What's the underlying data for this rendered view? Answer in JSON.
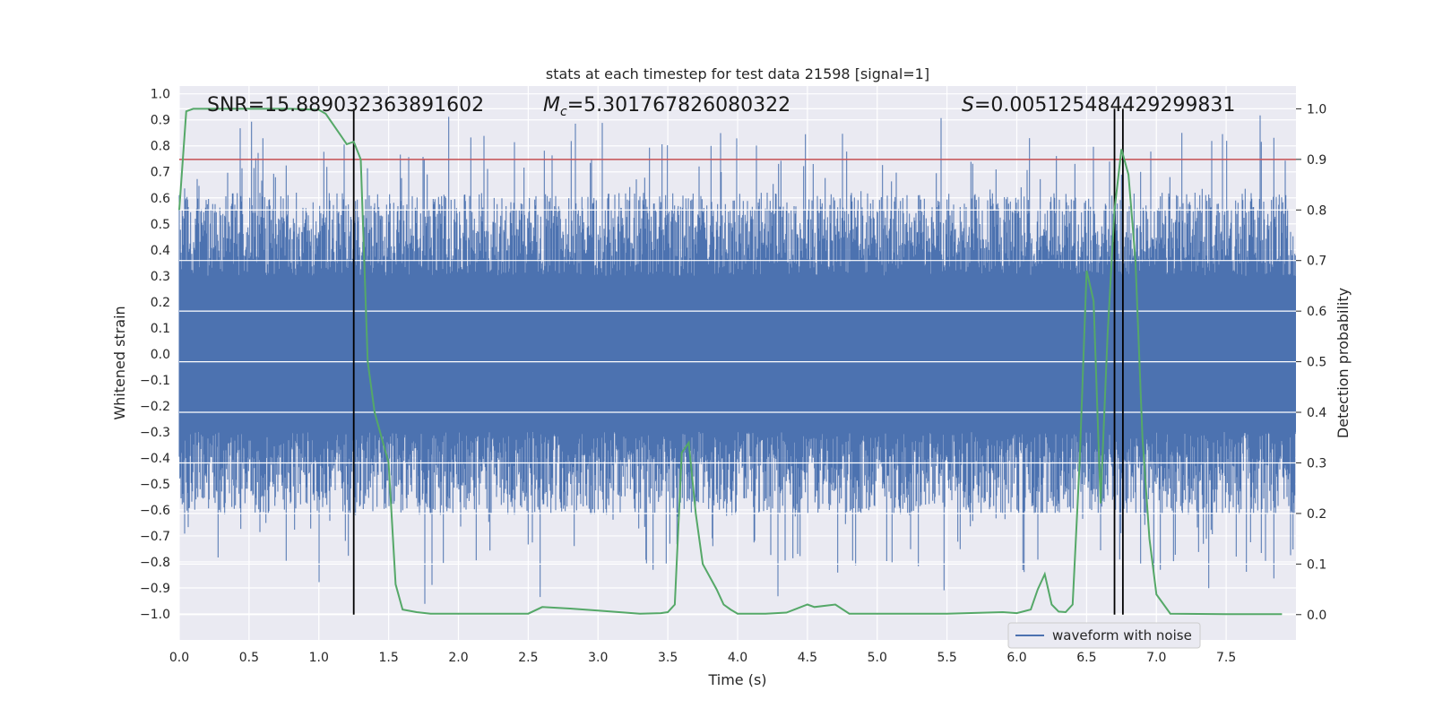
{
  "chart_data": {
    "type": "line",
    "title": "stats at each timestep for test data 21598 [signal=1]",
    "xlabel": "Time (s)",
    "ylabel_left": "Whitened strain",
    "ylabel_right": "Detection probability",
    "xlim": [
      0,
      8
    ],
    "ylim_left": [
      -1.1,
      1.03
    ],
    "ylim_right": [
      -0.05,
      1.045
    ],
    "x_ticks": [
      "0.0",
      "0.5",
      "1.0",
      "1.5",
      "2.0",
      "2.5",
      "3.0",
      "3.5",
      "4.0",
      "4.5",
      "5.0",
      "5.5",
      "6.0",
      "6.5",
      "7.0",
      "7.5"
    ],
    "y_ticks_left": [
      "1.0",
      "0.9",
      "0.8",
      "0.7",
      "0.6",
      "0.5",
      "0.4",
      "0.3",
      "0.2",
      "0.1",
      "0.0",
      "−0.1",
      "−0.2",
      "−0.3",
      "−0.4",
      "−0.5",
      "−0.6",
      "−0.7",
      "−0.8",
      "−0.9",
      "−1.0"
    ],
    "y_ticks_right": [
      "1.0",
      "0.9",
      "0.8",
      "0.7",
      "0.6",
      "0.5",
      "0.4",
      "0.3",
      "0.2",
      "0.1",
      "0.0"
    ],
    "grid": true,
    "legend": {
      "placement": "lower right",
      "entries": [
        "waveform with noise"
      ]
    },
    "annotations": {
      "snr": "SNR=15.889032363891602",
      "mc_symbol": "M",
      "mc_sub": "c",
      "mc_value": "=5.301767826080322",
      "s_symbol": "S",
      "s_value": "=0.005125484429299831"
    },
    "threshold_probability": 0.9,
    "vertical_markers_s": [
      1.25,
      6.7,
      6.76
    ],
    "series": [
      {
        "name": "waveform with noise",
        "kind": "noise",
        "color": "#4c72b0",
        "core_band": [
          -0.3,
          0.3
        ],
        "typical_peak": 0.62,
        "samples": 16384
      },
      {
        "kind": "probability",
        "color": "#55a868",
        "x": [
          0.0,
          0.05,
          0.1,
          0.2,
          0.3,
          0.5,
          0.8,
          0.9,
          1.0,
          1.05,
          1.2,
          1.25,
          1.3,
          1.35,
          1.4,
          1.5,
          1.55,
          1.6,
          1.7,
          1.8,
          2.0,
          2.5,
          2.6,
          2.8,
          3.0,
          3.3,
          3.45,
          3.5,
          3.55,
          3.6,
          3.65,
          3.7,
          3.75,
          3.85,
          3.9,
          3.95,
          4.0,
          4.2,
          4.35,
          4.5,
          4.55,
          4.7,
          4.8,
          5.0,
          5.5,
          5.9,
          6.0,
          6.1,
          6.15,
          6.2,
          6.25,
          6.3,
          6.35,
          6.4,
          6.45,
          6.5,
          6.55,
          6.6,
          6.65,
          6.7,
          6.75,
          6.8,
          6.85,
          6.9,
          6.95,
          7.0,
          7.1,
          7.5,
          7.9
        ],
        "y": [
          0.8,
          0.995,
          1.0,
          1.0,
          1.0,
          1.0,
          1.0,
          0.999,
          0.998,
          0.99,
          0.93,
          0.935,
          0.9,
          0.5,
          0.4,
          0.3,
          0.06,
          0.01,
          0.005,
          0.002,
          0.002,
          0.002,
          0.015,
          0.012,
          0.008,
          0.002,
          0.003,
          0.005,
          0.02,
          0.32,
          0.34,
          0.2,
          0.1,
          0.05,
          0.02,
          0.01,
          0.002,
          0.002,
          0.004,
          0.02,
          0.015,
          0.02,
          0.002,
          0.002,
          0.002,
          0.005,
          0.003,
          0.01,
          0.05,
          0.08,
          0.02,
          0.006,
          0.005,
          0.02,
          0.3,
          0.68,
          0.62,
          0.22,
          0.55,
          0.8,
          0.92,
          0.87,
          0.7,
          0.35,
          0.15,
          0.04,
          0.002,
          0.001,
          0.001
        ]
      },
      {
        "kind": "threshold",
        "color": "#c44e52"
      }
    ]
  }
}
